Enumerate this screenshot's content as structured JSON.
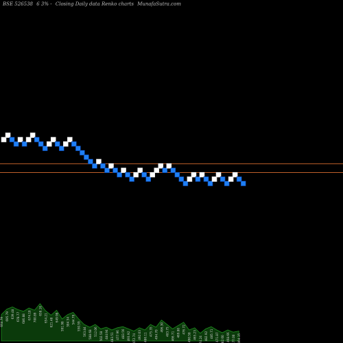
{
  "header": {
    "symbol": "BSE 526538",
    "change": "6 3% -",
    "description": "Closing Daily data Renko charts",
    "source": "MunafaSutra.com"
  },
  "colors": {
    "background": "#000000",
    "up_brick": "#ffffff",
    "down_brick": "#1e7ff5",
    "down_brick_border": "#0a3fa0",
    "reference_line": "#c0602a",
    "volume_fill": "#0b3a0b",
    "volume_stroke": "#1f8f1f"
  },
  "chart_data": {
    "type": "renko",
    "brick_size": 1,
    "bricks": [
      {
        "dir": "up",
        "level": 0
      },
      {
        "dir": "up",
        "level": 1
      },
      {
        "dir": "down",
        "level": 0
      },
      {
        "dir": "down",
        "level": -1
      },
      {
        "dir": "up",
        "level": 0
      },
      {
        "dir": "down",
        "level": -1
      },
      {
        "dir": "up",
        "level": 0
      },
      {
        "dir": "up",
        "level": 1
      },
      {
        "dir": "down",
        "level": 0
      },
      {
        "dir": "down",
        "level": -1
      },
      {
        "dir": "down",
        "level": -2
      },
      {
        "dir": "up",
        "level": -1
      },
      {
        "dir": "up",
        "level": 0
      },
      {
        "dir": "down",
        "level": -1
      },
      {
        "dir": "down",
        "level": -2
      },
      {
        "dir": "up",
        "level": -1
      },
      {
        "dir": "up",
        "level": 0
      },
      {
        "dir": "down",
        "level": -1
      },
      {
        "dir": "down",
        "level": -2
      },
      {
        "dir": "down",
        "level": -3
      },
      {
        "dir": "down",
        "level": -4
      },
      {
        "dir": "down",
        "level": -5
      },
      {
        "dir": "down",
        "level": -6
      },
      {
        "dir": "up",
        "level": -5
      },
      {
        "dir": "down",
        "level": -6
      },
      {
        "dir": "down",
        "level": -7
      },
      {
        "dir": "up",
        "level": -6
      },
      {
        "dir": "down",
        "level": -7
      },
      {
        "dir": "down",
        "level": -8
      },
      {
        "dir": "up",
        "level": -7
      },
      {
        "dir": "down",
        "level": -8
      },
      {
        "dir": "down",
        "level": -9
      },
      {
        "dir": "up",
        "level": -8
      },
      {
        "dir": "up",
        "level": -7
      },
      {
        "dir": "down",
        "level": -8
      },
      {
        "dir": "down",
        "level": -9
      },
      {
        "dir": "up",
        "level": -8
      },
      {
        "dir": "up",
        "level": -7
      },
      {
        "dir": "up",
        "level": -6
      },
      {
        "dir": "down",
        "level": -7
      },
      {
        "dir": "up",
        "level": -6
      },
      {
        "dir": "down",
        "level": -7
      },
      {
        "dir": "down",
        "level": -8
      },
      {
        "dir": "down",
        "level": -9
      },
      {
        "dir": "down",
        "level": -10
      },
      {
        "dir": "up",
        "level": -9
      },
      {
        "dir": "up",
        "level": -8
      },
      {
        "dir": "down",
        "level": -9
      },
      {
        "dir": "up",
        "level": -8
      },
      {
        "dir": "down",
        "level": -9
      },
      {
        "dir": "down",
        "level": -10
      },
      {
        "dir": "up",
        "level": -9
      },
      {
        "dir": "up",
        "level": -8
      },
      {
        "dir": "down",
        "level": -9
      },
      {
        "dir": "down",
        "level": -10
      },
      {
        "dir": "up",
        "level": -9
      },
      {
        "dir": "up",
        "level": -8
      },
      {
        "dir": "down",
        "level": -9
      },
      {
        "dir": "down",
        "level": -10
      }
    ],
    "reference_lines": [
      -5.5,
      -7.5
    ],
    "volume": [
      48,
      58,
      62,
      57,
      54,
      60,
      56,
      68,
      55,
      47,
      56,
      40,
      48,
      52,
      40,
      30,
      25,
      30,
      22,
      25,
      20,
      24,
      26,
      22,
      18,
      24,
      20,
      30,
      25,
      38,
      30,
      22,
      28,
      34,
      20,
      24,
      14,
      22,
      26,
      20,
      15,
      20,
      16,
      18
    ],
    "volume_labels": [
      "664.79",
      "695.79",
      "639.48",
      "678.77",
      "686.88",
      "674.18",
      "700.89",
      "658.16",
      "654.21",
      "621.48",
      "649.98",
      "591.98",
      "584.54",
      "544.79",
      "550.59",
      "563.84",
      "588.68",
      "512.06",
      "502.58",
      "484.94",
      "483.51",
      "477.96",
      "483.56",
      "493.92",
      "472.74",
      "492.03",
      "486.11",
      "475.35",
      "494.70",
      "496.30",
      "483.75",
      "466.71",
      "469.80",
      "476.72",
      "490.58",
      "465.23",
      "474.24",
      "482.92",
      "485.71",
      "471.87",
      "482.60",
      "468.66",
      "477.00",
      "464.15"
    ]
  }
}
